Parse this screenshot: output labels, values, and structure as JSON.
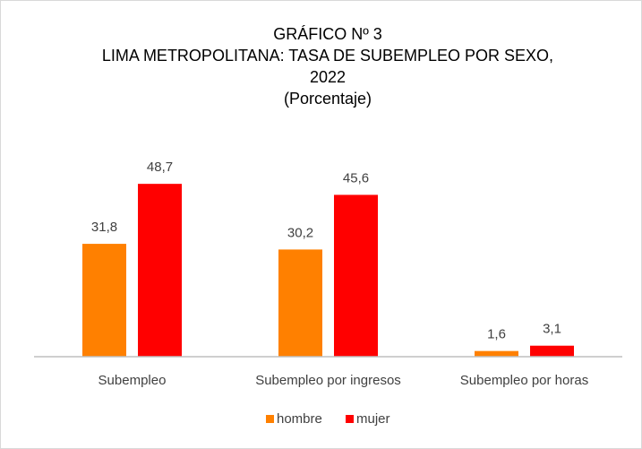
{
  "chart_data": {
    "type": "bar",
    "title": [
      "GRÁFICO Nº 3",
      "LIMA METROPOLITANA: TASA DE SUBEMPLEO POR SEXO,",
      "2022",
      "(Porcentaje)"
    ],
    "categories": [
      "Subempleo",
      "Subempleo por ingresos",
      "Subempleo por horas"
    ],
    "series": [
      {
        "name": "hombre",
        "color": "#ff8000",
        "values": [
          31.8,
          30.2,
          1.6
        ],
        "value_labels": [
          "31,8",
          "30,2",
          "1,6"
        ]
      },
      {
        "name": "mujer",
        "color": "#ff0000",
        "values": [
          48.7,
          45.6,
          3.1
        ],
        "value_labels": [
          "48,7",
          "45,6",
          "3,1"
        ]
      }
    ],
    "ylim": [
      0,
      50
    ],
    "legend": "bottom"
  }
}
